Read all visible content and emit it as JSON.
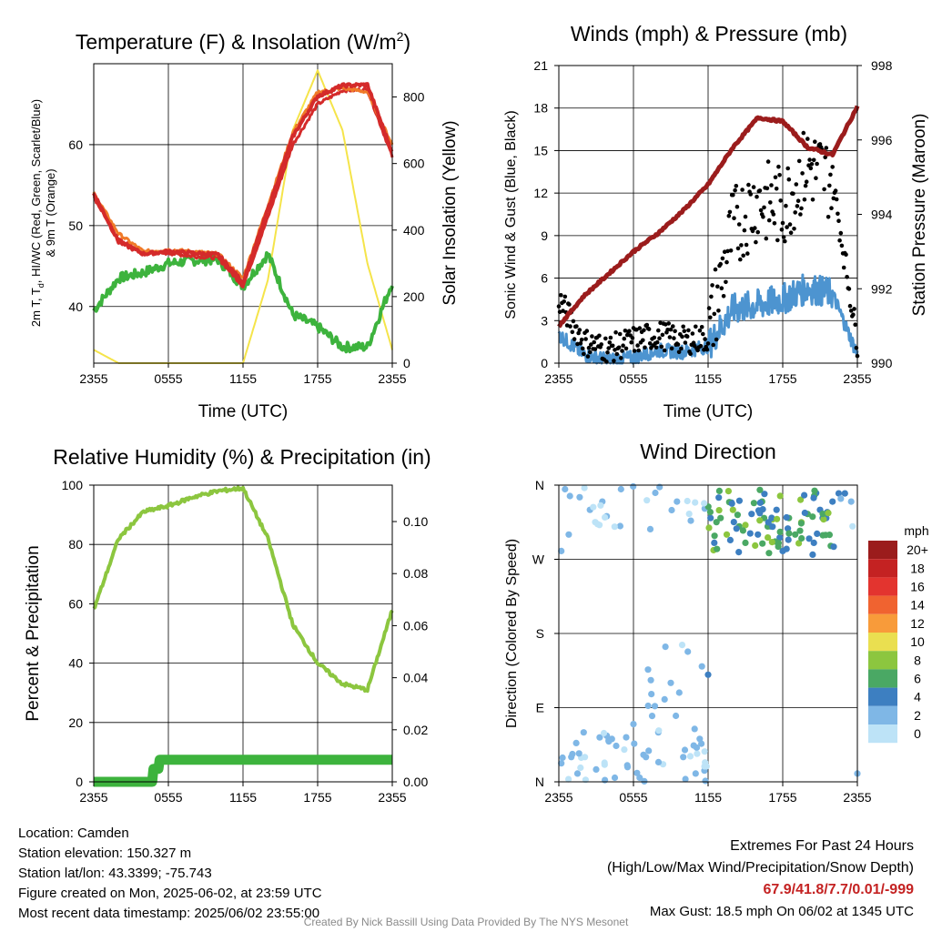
{
  "charts": {
    "temp": {
      "title": "Temperature (F) & Insolation (W/m",
      "title_sup": "2",
      "title_end": ")",
      "xlabel": "Time (UTC)",
      "ylabel_line1": "2m T, T",
      "ylabel_sub": "d",
      "ylabel_line1_end": ", HI/WC (Red, Green, Scarlet/Blue)",
      "ylabel_line2": "& 9m T (Orange)",
      "ylabel_right": "Solar Insolation (Yellow)",
      "xticks": [
        "2355",
        "0555",
        "1155",
        "1755",
        "2355"
      ],
      "yticks_left": [
        "40",
        "50",
        "60"
      ],
      "yticks_right": [
        "0",
        "200",
        "400",
        "600",
        "800"
      ]
    },
    "wind": {
      "title": "Winds (mph) & Pressure (mb)",
      "xlabel": "Time (UTC)",
      "ylabel_left": "Sonic Wind & Gust (Blue, Black)",
      "ylabel_right": "Station Pressure (Maroon)",
      "xticks": [
        "2355",
        "0555",
        "1155",
        "1755",
        "2355"
      ],
      "yticks_left": [
        "0",
        "3",
        "6",
        "9",
        "12",
        "15",
        "18",
        "21"
      ],
      "yticks_right": [
        "990",
        "992",
        "994",
        "996",
        "998"
      ]
    },
    "rh": {
      "title": "Relative Humidity (%) & Precipitation (in)",
      "ylabel_left": "Percent & Precipitation",
      "xticks": [
        "2355",
        "0555",
        "1155",
        "1755",
        "2355"
      ],
      "yticks_left": [
        "0",
        "20",
        "40",
        "60",
        "80",
        "100"
      ],
      "yticks_right": [
        "0.00",
        "0.02",
        "0.04",
        "0.06",
        "0.08",
        "0.10"
      ]
    },
    "dir": {
      "title": "Wind Direction",
      "ylabel_left": "Direction (Colored By Speed)",
      "xticks": [
        "2355",
        "0555",
        "1155",
        "1755",
        "2355"
      ],
      "yticks_left": [
        "N",
        "E",
        "S",
        "W",
        "N"
      ],
      "legend_title": "mph",
      "legend_labels": [
        "20+",
        "18",
        "16",
        "14",
        "12",
        "10",
        "8",
        "6",
        "4",
        "2",
        "0"
      ]
    }
  },
  "colors": {
    "temp_red": "#d42a2a",
    "temp_orange": "#f07a28",
    "dewpoint_green": "#3db33d",
    "insolation_yellow": "#f5e44a",
    "wind_blue": "#4d94d0",
    "gust_black": "#000000",
    "pressure_maroon": "#9b1c1c",
    "rh_green": "#8cc63f",
    "precip_green": "#3db33d",
    "legend_scale": [
      "#9b1c1c",
      "#c42222",
      "#e3342f",
      "#f06330",
      "#f89b3a",
      "#eadf50",
      "#8cc63f",
      "#4aa864",
      "#3d7fc1",
      "#7fb7e6",
      "#bde3f7"
    ]
  },
  "chart_data": [
    {
      "type": "line",
      "title": "Temperature (F) & Insolation (W/m2)",
      "xlabel": "Time (UTC)",
      "x_ticks": [
        "2355",
        "0555",
        "1155",
        "1755",
        "2355"
      ],
      "x_hours": [
        0,
        2,
        4,
        6,
        8,
        10,
        12,
        14,
        16,
        18,
        20,
        22,
        24
      ],
      "ylim_left": [
        33,
        70
      ],
      "ylim_right": [
        0,
        900
      ],
      "series": [
        {
          "name": "2m T (Red)",
          "axis": "left",
          "values": [
            54,
            48,
            46.5,
            46.8,
            46.6,
            46.4,
            43,
            52,
            61,
            66,
            67.3,
            67.4,
            59
          ]
        },
        {
          "name": "HI/WC (Scarlet/Blue)",
          "axis": "left",
          "values": [
            53.5,
            48.3,
            46.6,
            46.6,
            46.2,
            46,
            42.5,
            51,
            60,
            65,
            66.7,
            66.8,
            58.5
          ]
        },
        {
          "name": "9m T (Orange)",
          "axis": "left",
          "values": [
            54,
            49,
            46.8,
            47,
            46.8,
            46.5,
            43.5,
            52.5,
            61.5,
            66.5,
            67,
            66.5,
            60
          ]
        },
        {
          "name": "T_d (Green)",
          "axis": "left",
          "values": [
            39.5,
            43.5,
            44.2,
            45.3,
            45.7,
            45.8,
            42.5,
            46.5,
            39,
            37.5,
            35,
            35,
            43
          ]
        },
        {
          "name": "Solar Insolation (Yellow)",
          "axis": "right",
          "values": [
            40,
            0,
            0,
            0,
            0,
            0,
            0,
            250,
            700,
            880,
            700,
            300,
            40
          ]
        }
      ]
    },
    {
      "type": "line",
      "title": "Winds (mph) & Pressure (mb)",
      "xlabel": "Time (UTC)",
      "x_ticks": [
        "2355",
        "0555",
        "1155",
        "1755",
        "2355"
      ],
      "ylim_left": [
        0,
        21
      ],
      "ylim_right": [
        990,
        998
      ],
      "series": [
        {
          "name": "Sonic Wind (Blue)",
          "axis": "left",
          "x_hours": [
            0,
            2,
            4,
            6,
            8,
            10,
            12,
            14,
            16,
            18,
            20,
            22,
            24
          ],
          "values": [
            2,
            0.6,
            0.2,
            0.4,
            0.9,
            0.8,
            1.2,
            3.8,
            4.1,
            4.5,
            5.3,
            4.9,
            0.6
          ]
        },
        {
          "name": "Gust (Black)",
          "axis": "left",
          "x_hours": [
            0,
            2,
            4,
            6,
            8,
            10,
            12,
            14,
            16,
            18,
            20,
            22,
            24
          ],
          "values": [
            4.5,
            1.5,
            1,
            1.6,
            2,
            1.6,
            1.8,
            9.5,
            11.5,
            11,
            14,
            13,
            1.5
          ]
        },
        {
          "name": "Station Pressure (Maroon)",
          "axis": "right",
          "x_hours": [
            0,
            2,
            4,
            6,
            8,
            10,
            12,
            14,
            16,
            18,
            20,
            22,
            24
          ],
          "values": [
            991,
            991.8,
            992.4,
            993,
            993.5,
            994.1,
            994.8,
            995.8,
            996.6,
            996.5,
            995.8,
            995.6,
            996.9
          ]
        }
      ]
    },
    {
      "type": "line",
      "title": "Relative Humidity (%) & Precipitation (in)",
      "x_ticks": [
        "2355",
        "0555",
        "1155",
        "1755",
        "2355"
      ],
      "ylim_left": [
        0,
        100
      ],
      "ylim_right": [
        0,
        0.114
      ],
      "series": [
        {
          "name": "Relative Humidity",
          "axis": "left",
          "x_hours": [
            0,
            2,
            4,
            6,
            8,
            10,
            12,
            14,
            16,
            18,
            20,
            22,
            24
          ],
          "values": [
            58,
            82,
            91,
            93,
            96,
            98,
            99,
            82,
            53,
            40,
            33,
            31,
            58
          ]
        },
        {
          "name": "Precipitation",
          "axis": "right",
          "x_hours": [
            0,
            2,
            4,
            6,
            8,
            10,
            12,
            14,
            16,
            18,
            20,
            22,
            24
          ],
          "values": [
            0,
            0,
            0,
            0,
            0.005,
            0.009,
            0.009,
            0.009,
            0.009,
            0.009,
            0.009,
            0.009,
            0.009
          ]
        }
      ]
    },
    {
      "type": "scatter",
      "title": "Wind Direction",
      "x_ticks": [
        "2355",
        "0555",
        "1155",
        "1755",
        "2355"
      ],
      "y_ticks": [
        "N",
        "E",
        "S",
        "W",
        "N"
      ],
      "ylim": [
        0,
        360
      ],
      "points_hours_dir_speed": [
        [
          0.5,
          355,
          1
        ],
        [
          1.5,
          10,
          1
        ],
        [
          2.5,
          330,
          1
        ],
        [
          3.5,
          340,
          1
        ],
        [
          5,
          355,
          2
        ],
        [
          5.5,
          20,
          1
        ],
        [
          6,
          70,
          1
        ],
        [
          7,
          30,
          2
        ],
        [
          7.5,
          80,
          1
        ],
        [
          8,
          60,
          2
        ],
        [
          8.5,
          100,
          2
        ],
        [
          9,
          120,
          1
        ],
        [
          9.5,
          340,
          1
        ],
        [
          10,
          30,
          2
        ],
        [
          11,
          10,
          1
        ],
        [
          11.5,
          140,
          1
        ],
        [
          12,
          130,
          3
        ],
        [
          12.2,
          320,
          3
        ],
        [
          12.5,
          290,
          3
        ],
        [
          13,
          320,
          5
        ],
        [
          13.5,
          300,
          7
        ],
        [
          14,
          330,
          7
        ],
        [
          14.5,
          310,
          6
        ],
        [
          15,
          290,
          5
        ],
        [
          15.5,
          325,
          4
        ],
        [
          16,
          300,
          4
        ],
        [
          16.5,
          320,
          6
        ],
        [
          17,
          310,
          5
        ],
        [
          17.5,
          330,
          3
        ],
        [
          18,
          280,
          4
        ],
        [
          18.5,
          320,
          6
        ],
        [
          19,
          300,
          5
        ],
        [
          19.5,
          315,
          7
        ],
        [
          20,
          325,
          5
        ],
        [
          20.5,
          290,
          4
        ],
        [
          21,
          330,
          4
        ],
        [
          21.5,
          320,
          3
        ],
        [
          22,
          340,
          4
        ],
        [
          22.5,
          350,
          3
        ],
        [
          23,
          350,
          3
        ],
        [
          23.5,
          340,
          1
        ],
        [
          24,
          10,
          1
        ],
        [
          0.2,
          280,
          1
        ],
        [
          0.8,
          300,
          1
        ],
        [
          1,
          30,
          1
        ],
        [
          2,
          60,
          1
        ],
        [
          3,
          15,
          1
        ],
        [
          4,
          50,
          2
        ],
        [
          4.5,
          5,
          1
        ],
        [
          6.5,
          5,
          1
        ]
      ],
      "speed_legend": [
        "20+",
        "18",
        "16",
        "14",
        "12",
        "10",
        "8",
        "6",
        "4",
        "2",
        "0"
      ]
    }
  ],
  "info": {
    "location": "Location: Camden",
    "elevation": "Station elevation: 150.327 m",
    "latlon": "Station lat/lon: 43.3399; -75.743",
    "created": "Figure created on Mon, 2025-06-02, at 23:59 UTC",
    "recent": "Most recent data timestamp: 2025/06/02 23:55:00",
    "extremes_title": "Extremes For Past 24 Hours",
    "extremes_subtitle": "(High/Low/Max Wind/Precipitation/Snow Depth)",
    "extremes_values": "67.9/41.8/7.7/0.01/-999",
    "max_gust": "Max Gust: 18.5 mph On 06/02 at 1345 UTC",
    "credit": "Created By Nick Bassill Using Data Provided By The NYS Mesonet"
  }
}
